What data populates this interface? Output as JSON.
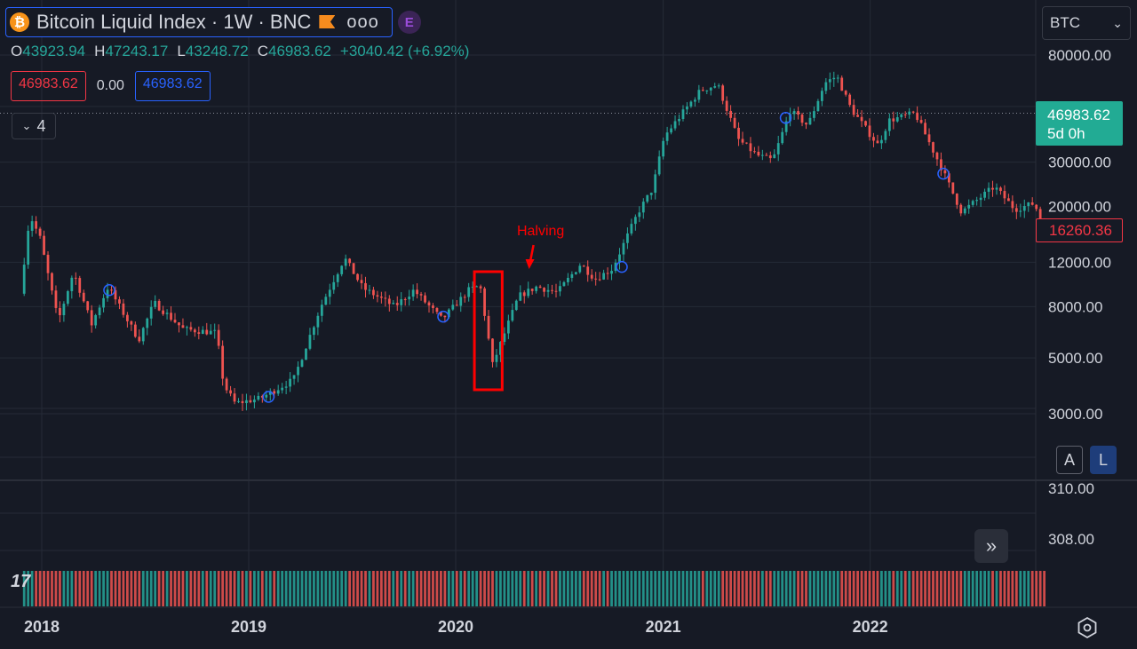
{
  "header": {
    "symbol_title": "Bitcoin Liquid Index · 1W · BNC",
    "logo_glyph": "₿",
    "badge": "E",
    "more": "ooo"
  },
  "ohlc": {
    "o_label": "O",
    "o": "43923.94",
    "h_label": "H",
    "h": "47243.17",
    "l_label": "L",
    "l": "43248.72",
    "c_label": "C",
    "c": "46983.62",
    "change": "+3040.42 (+6.92%)"
  },
  "indicator_values": {
    "first": "46983.62",
    "second": "0.00",
    "third": "46983.62"
  },
  "collapse": {
    "count": "4"
  },
  "currency_select": {
    "value": "BTC"
  },
  "last_price": {
    "value": "46983.62",
    "countdown": "5d 0h"
  },
  "low_price": {
    "value": "16260.36"
  },
  "buttons": {
    "auto": "A",
    "log": "L"
  },
  "colors": {
    "up": "#26a69a",
    "down": "#ef5350",
    "background": "#161a25",
    "grid": "#252a36",
    "annotation": "#ff0000",
    "marker": "#2962ff"
  },
  "chart_data": {
    "type": "candlestick",
    "scale": "log",
    "y_ticks": [
      3000,
      5000,
      8000,
      12000,
      20000,
      30000,
      80000
    ],
    "y_tick_labels": [
      "3000.00",
      "5000.00",
      "8000.00",
      "12000.00",
      "20000.00",
      "30000.00",
      "80000.00"
    ],
    "x_tick_labels": [
      "2018",
      "2019",
      "2020",
      "2021",
      "2022"
    ],
    "lower_pane_ticks": [
      "310.00",
      "308.00"
    ],
    "series_anchors": [
      [
        "2017-12-01",
        9000
      ],
      [
        "2017-12-18",
        18500
      ],
      [
        "2018-01-05",
        15000
      ],
      [
        "2018-02-06",
        7000
      ],
      [
        "2018-03-05",
        11000
      ],
      [
        "2018-04-06",
        6800
      ],
      [
        "2018-05-05",
        9600
      ],
      [
        "2018-06-28",
        5900
      ],
      [
        "2018-07-25",
        8300
      ],
      [
        "2018-09-15",
        6500
      ],
      [
        "2018-11-12",
        6300
      ],
      [
        "2018-11-25",
        3900
      ],
      [
        "2018-12-15",
        3300
      ],
      [
        "2019-01-28",
        3450
      ],
      [
        "2019-03-28",
        4100
      ],
      [
        "2019-05-15",
        8000
      ],
      [
        "2019-06-26",
        12500
      ],
      [
        "2019-07-28",
        9500
      ],
      [
        "2019-09-22",
        8000
      ],
      [
        "2019-10-26",
        9300
      ],
      [
        "2019-12-15",
        7100
      ],
      [
        "2020-01-31",
        9300
      ],
      [
        "2020-02-20",
        9700
      ],
      [
        "2020-03-13",
        4700
      ],
      [
        "2020-04-28",
        8800
      ],
      [
        "2020-05-30",
        9600
      ],
      [
        "2020-07-05",
        9100
      ],
      [
        "2020-08-15",
        11800
      ],
      [
        "2020-09-10",
        10300
      ],
      [
        "2020-10-10",
        11300
      ],
      [
        "2020-11-25",
        19000
      ],
      [
        "2020-12-20",
        23500
      ],
      [
        "2021-01-10",
        38000
      ],
      [
        "2021-02-20",
        50000
      ],
      [
        "2021-03-15",
        58000
      ],
      [
        "2021-04-14",
        61000
      ],
      [
        "2021-05-20",
        37000
      ],
      [
        "2021-06-22",
        32000
      ],
      [
        "2021-07-20",
        30500
      ],
      [
        "2021-08-20",
        48000
      ],
      [
        "2021-09-20",
        42000
      ],
      [
        "2021-10-20",
        62000
      ],
      [
        "2021-11-10",
        66000
      ],
      [
        "2021-12-05",
        49000
      ],
      [
        "2022-01-22",
        35000
      ],
      [
        "2022-02-10",
        44000
      ],
      [
        "2022-03-28",
        47000
      ],
      [
        "2022-05-12",
        29000
      ],
      [
        "2022-06-18",
        19000
      ],
      [
        "2022-08-15",
        24000
      ],
      [
        "2022-09-20",
        19500
      ],
      [
        "2022-10-25",
        20600
      ],
      [
        "2022-11-09",
        16260
      ]
    ],
    "markers": [
      [
        "2018-04-30",
        9300
      ],
      [
        "2019-02-05",
        3500
      ],
      [
        "2019-12-10",
        7300
      ],
      [
        "2020-10-20",
        11500
      ],
      [
        "2021-08-05",
        45000
      ],
      [
        "2022-05-10",
        27000
      ]
    ],
    "annotation": {
      "label": "Halving",
      "date": "2020-05-11"
    },
    "highlight": {
      "from": "2020-02-03",
      "to": "2020-03-23"
    },
    "last_price_line": 46983.62
  }
}
